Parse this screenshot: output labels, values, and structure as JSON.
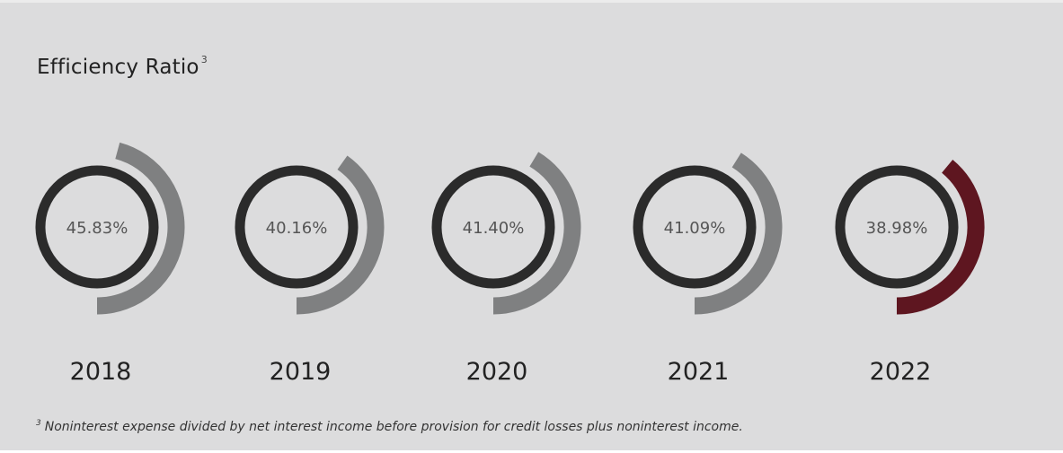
{
  "title": {
    "text": "Efficiency Ratio",
    "footnote_marker": "3"
  },
  "chart_data": {
    "type": "radial-gauge",
    "title": "Efficiency Ratio",
    "categories": [
      "2018",
      "2019",
      "2020",
      "2021",
      "2022"
    ],
    "values": [
      45.83,
      40.16,
      41.4,
      41.09,
      38.98
    ],
    "value_labels": [
      "45.83%",
      "40.16%",
      "41.40%",
      "41.09%",
      "38.98%"
    ],
    "unit": "%",
    "highlight_category": "2022",
    "colors": {
      "ring": "#2b2b2b",
      "arc": "#7f8081",
      "highlight_arc": "#5e1620",
      "value_text": "#555555",
      "year_text": "#222222"
    }
  },
  "footnote": {
    "marker": "3",
    "text": "Noninterest expense divided by net interest income before provision for credit losses plus noninterest income."
  }
}
